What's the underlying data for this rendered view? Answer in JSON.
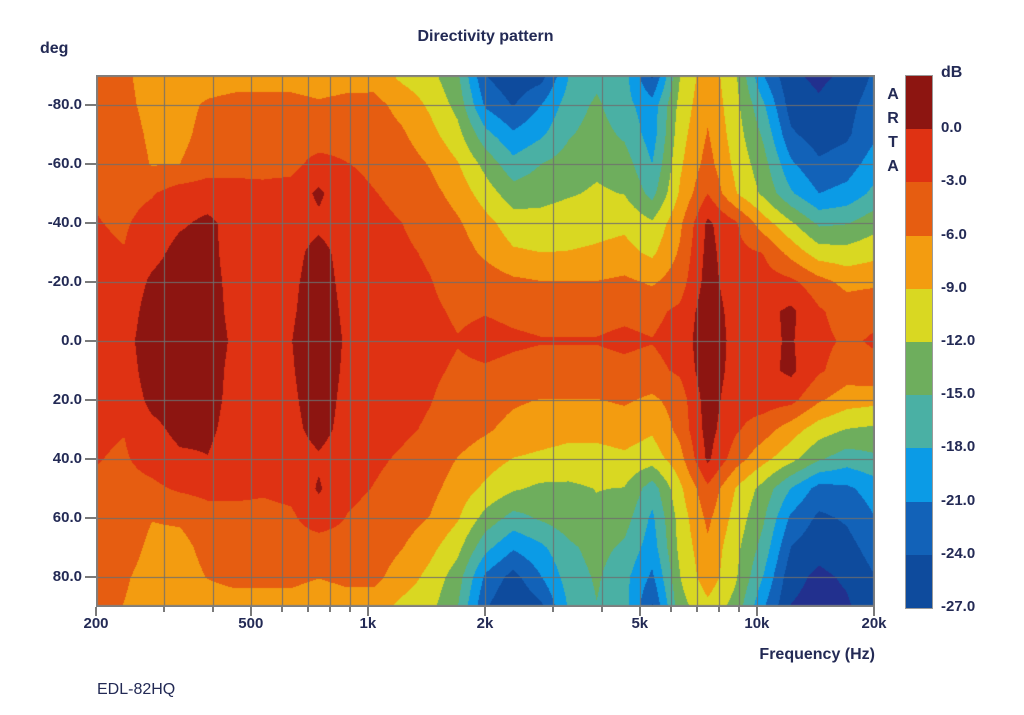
{
  "page": {
    "background": "#ffffff"
  },
  "header": {
    "title": "Directivity pattern"
  },
  "footer": {
    "device_name": "EDL-82HQ"
  },
  "watermark": {
    "brand_vertical": [
      "A",
      "R",
      "T",
      "A"
    ]
  },
  "chart_data": {
    "type": "heatmap",
    "title": "Directivity pattern",
    "y_axis_unit_label": "deg",
    "x_axis_label": "Frequency (Hz)",
    "colorbar_unit_label": "dB",
    "x_scale": "log",
    "x_range_hz": [
      200,
      20000
    ],
    "y_range_deg": [
      -90,
      90
    ],
    "grid_color": "#6e6e6e",
    "border_color": "#7e7e7e",
    "x_ticks": [
      {
        "label": "200",
        "hz": 200
      },
      {
        "label": "500",
        "hz": 500
      },
      {
        "label": "1k",
        "hz": 1000
      },
      {
        "label": "2k",
        "hz": 2000
      },
      {
        "label": "5k",
        "hz": 5000
      },
      {
        "label": "10k",
        "hz": 10000
      },
      {
        "label": "20k",
        "hz": 20000
      }
    ],
    "x_minor_tick_hz": [
      300,
      400,
      600,
      700,
      800,
      900,
      3000,
      4000,
      6000,
      7000,
      8000,
      9000
    ],
    "x_grid_hz": [
      300,
      400,
      500,
      600,
      700,
      800,
      900,
      1000,
      2000,
      3000,
      4000,
      5000,
      6000,
      7000,
      8000,
      9000,
      10000
    ],
    "y_ticks_deg": [
      -80,
      -60,
      -40,
      -20,
      0,
      20,
      40,
      60,
      80
    ],
    "y_tick_labels": [
      "-80.0",
      "-60.0",
      "-40.0",
      "-20.0",
      "0.0",
      "20.0",
      "40.0",
      "60.0",
      "80.0"
    ],
    "color_scale": {
      "levels_db": [
        0,
        -3,
        -6,
        -9,
        -12,
        -15,
        -18,
        -21,
        -24,
        -27
      ],
      "label_values": [
        "0.0",
        "-3.0",
        "-6.0",
        "-9.0",
        "-12.0",
        "-15.0",
        "-18.0",
        "-21.0",
        "-24.0",
        "-27.0"
      ],
      "colors": [
        "#8D1511",
        "#DF3213",
        "#E65D11",
        "#F39C10",
        "#D9D822",
        "#6EAE5D",
        "#4AB0A4",
        "#0B9BE6",
        "#1262B8",
        "#0E4B9D",
        "#22308E"
      ]
    },
    "grid_freqs_hz": [
      200,
      236,
      278,
      328,
      386,
      455,
      537,
      633,
      746,
      879,
      1037,
      1222,
      1441,
      1698,
      2002,
      2360,
      2782,
      3280,
      3867,
      4559,
      5374,
      6335,
      7469,
      8805,
      10380,
      12236,
      14425,
      17006,
      20000
    ],
    "grid_angles_deg": [
      -90,
      -80,
      -70,
      -60,
      -50,
      -40,
      -30,
      -20,
      -10,
      0,
      10,
      20,
      30,
      40,
      50,
      60,
      70,
      80,
      90
    ],
    "values_db": [
      [
        -4.2,
        -5.5,
        -7.2,
        -7.5,
        -7.5,
        -7.2,
        -7.2,
        -7.2,
        -7.6,
        -7.2,
        -7.2,
        -9.8,
        -11.0,
        -14.5,
        -24.0,
        -26.2,
        -25.2,
        -18.0,
        -15.8,
        -16.8,
        -24.6,
        -12.0,
        -7.0,
        -11.5,
        -21.0,
        -26.5,
        -27.6,
        -26.5,
        -23.5
      ],
      [
        -4.0,
        -5.2,
        -7.0,
        -7.0,
        -5.6,
        -5.1,
        -5.1,
        -5.1,
        -5.6,
        -5.2,
        -5.1,
        -7.0,
        -9.5,
        -13.0,
        -21.5,
        -24.2,
        -21.0,
        -16.5,
        -14.5,
        -17.0,
        -19.8,
        -11.0,
        -6.5,
        -11.0,
        -17.5,
        -25.5,
        -26.6,
        -25.0,
        -22.5
      ],
      [
        -3.8,
        -4.6,
        -6.6,
        -6.8,
        -5.0,
        -4.3,
        -4.3,
        -4.4,
        -4.9,
        -4.5,
        -4.4,
        -5.6,
        -8.0,
        -11.0,
        -17.0,
        -20.5,
        -18.5,
        -15.3,
        -13.8,
        -15.5,
        -19.5,
        -10.2,
        -5.8,
        -10.5,
        -15.5,
        -23.5,
        -25.5,
        -24.5,
        -21.5
      ],
      [
        -3.5,
        -4.2,
        -6.2,
        -6.0,
        -4.4,
        -3.9,
        -3.9,
        -4.0,
        -1.8,
        -2.9,
        -3.6,
        -4.4,
        -6.2,
        -8.8,
        -13.0,
        -17.0,
        -15.0,
        -13.6,
        -12.6,
        -13.6,
        -18.0,
        -9.5,
        -4.8,
        -9.8,
        -13.8,
        -20.5,
        -23.5,
        -22.5,
        -19.5
      ],
      [
        -3.2,
        -3.8,
        -3.2,
        -1.6,
        -1.4,
        -2.0,
        -2.2,
        -1.7,
        0.5,
        -2.0,
        -2.9,
        -3.7,
        -5.0,
        -7.1,
        -10.5,
        -13.6,
        -13.0,
        -12.3,
        -11.6,
        -12.1,
        -16.0,
        -8.6,
        -3.0,
        -8.8,
        -12.6,
        -17.6,
        -21.0,
        -20.0,
        -17.2
      ],
      [
        -2.9,
        -3.3,
        -2.0,
        -0.4,
        0.6,
        -1.1,
        -1.6,
        -1.3,
        -0.6,
        -1.6,
        -2.3,
        -3.0,
        -4.0,
        -5.6,
        -8.0,
        -10.6,
        -10.9,
        -10.3,
        -9.9,
        -9.6,
        -11.6,
        -6.6,
        0.6,
        -2.6,
        -7.6,
        -11.6,
        -15.6,
        -15.2,
        -13.2
      ],
      [
        -2.6,
        -2.9,
        -1.0,
        1.0,
        0.9,
        -1.3,
        -1.6,
        -0.9,
        0.9,
        -1.1,
        -2.0,
        -2.6,
        -3.3,
        -4.6,
        -6.6,
        -8.6,
        -9.0,
        -8.9,
        -8.6,
        -8.1,
        -9.6,
        -5.6,
        1.0,
        -2.1,
        -3.1,
        -7.1,
        -10.6,
        -10.9,
        -9.9
      ],
      [
        -2.3,
        -2.3,
        0.6,
        1.6,
        1.1,
        -1.0,
        -1.3,
        -0.6,
        1.3,
        -0.9,
        -1.9,
        -2.3,
        -2.9,
        -3.9,
        -4.4,
        -5.4,
        -5.9,
        -5.9,
        -5.9,
        -5.4,
        -6.4,
        -4.4,
        1.3,
        -1.9,
        -1.6,
        -2.3,
        -4.9,
        -6.9,
        -6.6
      ],
      [
        -2.1,
        -1.9,
        1.6,
        2.1,
        1.3,
        -0.9,
        -1.1,
        -0.4,
        1.6,
        -0.6,
        -1.6,
        -2.1,
        -2.6,
        -3.3,
        -3.1,
        -3.4,
        -3.6,
        -3.6,
        -3.6,
        -3.4,
        -3.7,
        -2.4,
        1.9,
        -1.3,
        -0.9,
        0.6,
        -2.6,
        -4.3,
        -3.6
      ],
      [
        -1.9,
        -1.3,
        2.1,
        2.3,
        1.6,
        -0.6,
        -0.9,
        -0.1,
        2.1,
        -0.4,
        -1.3,
        -1.9,
        -2.3,
        -2.9,
        -2.4,
        -2.7,
        -2.9,
        -2.9,
        -2.9,
        -2.6,
        -2.9,
        -1.9,
        2.3,
        -1.1,
        -0.6,
        0.3,
        -2.3,
        -3.4,
        -2.7
      ],
      [
        -2.1,
        -1.9,
        1.9,
        2.1,
        1.3,
        -0.9,
        -1.1,
        -0.3,
        1.9,
        -0.6,
        -1.6,
        -2.1,
        -2.6,
        -3.3,
        -3.2,
        -3.5,
        -3.7,
        -3.7,
        -3.7,
        -3.5,
        -3.8,
        -2.5,
        2.1,
        -1.3,
        -0.9,
        0.6,
        -2.6,
        -4.4,
        -3.7
      ],
      [
        -2.3,
        -2.3,
        0.9,
        1.6,
        1.1,
        -1.0,
        -1.3,
        -0.6,
        1.6,
        -0.9,
        -1.9,
        -2.3,
        -2.9,
        -3.9,
        -4.6,
        -5.6,
        -6.1,
        -6.1,
        -6.1,
        -5.6,
        -6.6,
        -4.6,
        1.6,
        -1.9,
        -1.6,
        -2.1,
        -5.6,
        -7.6,
        -8.1
      ],
      [
        -2.6,
        -2.9,
        -0.9,
        0.9,
        0.6,
        -1.2,
        -1.6,
        -0.9,
        1.1,
        -1.1,
        -2.0,
        -2.6,
        -3.3,
        -4.6,
        -5.6,
        -6.9,
        -7.6,
        -8.1,
        -8.1,
        -7.6,
        -8.6,
        -5.1,
        1.2,
        -2.6,
        -4.6,
        -7.6,
        -10.6,
        -12.1,
        -12.6
      ],
      [
        -2.9,
        -3.3,
        -1.9,
        -0.6,
        -0.1,
        -1.6,
        -2.1,
        -1.6,
        -0.4,
        -1.9,
        -2.6,
        -3.3,
        -4.3,
        -6.1,
        -7.6,
        -9.1,
        -9.6,
        -10.1,
        -10.1,
        -9.6,
        -10.6,
        -7.1,
        0.6,
        -4.6,
        -8.1,
        -11.1,
        -14.6,
        -16.6,
        -15.6
      ],
      [
        -3.3,
        -3.9,
        -3.6,
        -2.6,
        -2.1,
        -2.3,
        -2.6,
        -2.1,
        0.3,
        -2.3,
        -3.1,
        -3.9,
        -5.1,
        -7.3,
        -9.6,
        -11.6,
        -12.6,
        -12.6,
        -11.9,
        -12.1,
        -16.6,
        -9.6,
        -3.6,
        -9.1,
        -13.1,
        -18.1,
        -22.1,
        -21.6,
        -19.6
      ],
      [
        -3.6,
        -4.3,
        -5.9,
        -5.6,
        -4.3,
        -3.9,
        -3.9,
        -3.6,
        -1.1,
        -3.1,
        -3.9,
        -4.6,
        -6.1,
        -8.7,
        -13.1,
        -16.1,
        -14.6,
        -13.3,
        -12.6,
        -13.7,
        -18.6,
        -10.7,
        -5.3,
        -10.1,
        -14.6,
        -21.6,
        -24.6,
        -23.6,
        -21.1
      ],
      [
        -3.9,
        -4.6,
        -6.7,
        -6.9,
        -5.1,
        -4.4,
        -4.4,
        -4.5,
        -4.9,
        -4.6,
        -4.6,
        -5.9,
        -8.1,
        -11.1,
        -17.1,
        -20.6,
        -18.6,
        -15.6,
        -13.9,
        -15.6,
        -19.6,
        -11.1,
        -6.6,
        -11.1,
        -16.1,
        -24.1,
        -26.1,
        -25.1,
        -22.6
      ],
      [
        -4.2,
        -5.6,
        -7.3,
        -7.3,
        -5.9,
        -5.3,
        -5.3,
        -5.3,
        -5.9,
        -5.3,
        -5.3,
        -7.3,
        -9.9,
        -13.6,
        -21.6,
        -25.1,
        -21.1,
        -16.6,
        -14.6,
        -17.1,
        -21.6,
        -12.1,
        -7.1,
        -11.6,
        -18.1,
        -26.1,
        -27.6,
        -26.6,
        -24.1
      ],
      [
        -4.6,
        -6.1,
        -7.6,
        -7.6,
        -7.3,
        -7.1,
        -7.1,
        -7.1,
        -7.9,
        -7.3,
        -7.3,
        -9.9,
        -11.1,
        -14.9,
        -23.6,
        -27.1,
        -24.6,
        -17.6,
        -15.1,
        -16.9,
        -24.3,
        -13.1,
        -9.9,
        -13.1,
        -20.6,
        -27.1,
        -28.1,
        -27.4,
        -25.1
      ]
    ]
  }
}
